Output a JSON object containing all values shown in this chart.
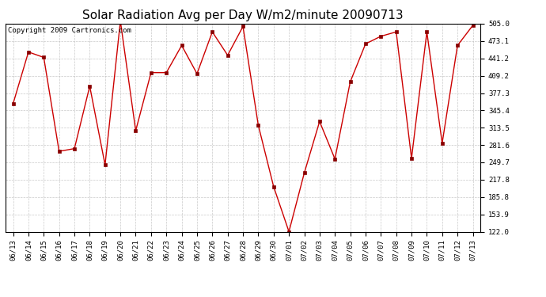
{
  "title": "Solar Radiation Avg per Day W/m2/minute 20090713",
  "copyright": "Copyright 2009 Cartronics.com",
  "dates": [
    "06/13",
    "06/14",
    "06/15",
    "06/16",
    "06/17",
    "06/18",
    "06/19",
    "06/20",
    "06/21",
    "06/22",
    "06/23",
    "06/24",
    "06/25",
    "06/26",
    "06/27",
    "06/28",
    "06/29",
    "06/30",
    "07/01",
    "07/02",
    "07/03",
    "07/04",
    "07/05",
    "07/06",
    "07/07",
    "07/08",
    "07/09",
    "07/10",
    "07/11",
    "07/12",
    "07/13"
  ],
  "values": [
    358.0,
    453.0,
    443.0,
    270.0,
    275.0,
    390.0,
    245.0,
    510.0,
    308.0,
    415.0,
    415.0,
    465.0,
    413.0,
    490.0,
    447.0,
    500.0,
    318.0,
    205.0,
    122.0,
    230.0,
    325.0,
    256.0,
    398.0,
    468.0,
    482.0,
    490.0,
    257.0,
    490.0,
    285.0,
    465.0,
    502.0
  ],
  "line_color": "#cc0000",
  "marker_color": "#880000",
  "bg_color": "#ffffff",
  "grid_color": "#bbbbbb",
  "ylim_min": 122.0,
  "ylim_max": 505.0,
  "yticks": [
    122.0,
    153.9,
    185.8,
    217.8,
    249.7,
    281.6,
    313.5,
    345.4,
    377.3,
    409.2,
    441.2,
    473.1,
    505.0
  ],
  "title_fontsize": 11,
  "tick_fontsize": 6.5,
  "copyright_fontsize": 6.5
}
